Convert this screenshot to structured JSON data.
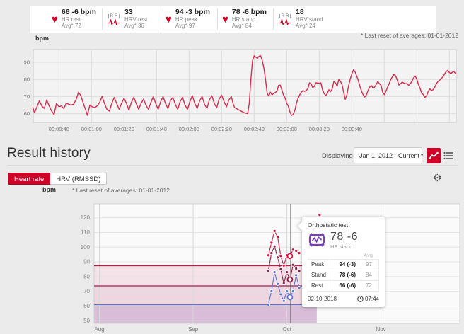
{
  "icons": {
    "heart": "♥",
    "rr_label": "R-R",
    "dropdown_arrow": "▼",
    "gear": "⚙"
  },
  "colors": {
    "brand_red": "#d10027",
    "line_red": "#dc2a4d",
    "peak": "#d6133f",
    "stand": "#8f2045",
    "rest": "#5b74cf",
    "cursor": "#3d3d3d"
  },
  "top_stats": {
    "items": [
      {
        "icon": "heart",
        "value": "66 -6 bpm",
        "label": "HR rest",
        "avg": "Avg* 72"
      },
      {
        "icon": "rr",
        "value": "33",
        "label": "HRV rest",
        "avg": "Avg* 36"
      },
      {
        "icon": "heart",
        "value": "94 -3 bpm",
        "label": "HR peak",
        "avg": "Avg* 97"
      },
      {
        "icon": "heart",
        "value": "78 -6 bpm",
        "label": "HR stand",
        "avg": "Avg* 84"
      },
      {
        "icon": "rr",
        "value": "18",
        "label": "HRV stand",
        "avg": "Avg* 24"
      }
    ],
    "reset_note": "* Last reset of averages: 01-01-2012"
  },
  "result_history": {
    "title": "Result history",
    "displaying_label": "Displaying",
    "range_value": "Jan 1, 2012 - Current",
    "tabs": [
      {
        "label": "Heart rate",
        "active": true
      },
      {
        "label": "HRV (RMSSD)",
        "active": false
      }
    ],
    "unit": "bpm",
    "reset_note": "* Last reset of averages: 01-01-2012"
  },
  "tooltip": {
    "title": "Orthostatic test",
    "value": "78 -6",
    "value_label": "HR stand",
    "avg_header": "Avg",
    "rows": [
      {
        "label": "Peak",
        "value": "94 (-3)",
        "avg": "97"
      },
      {
        "label": "Stand",
        "value": "78 (-6)",
        "avg": "84"
      },
      {
        "label": "Rest",
        "value": "66 (-6)",
        "avg": "72"
      }
    ],
    "date": "02-10-2018",
    "time": "07:44"
  },
  "chart_data": [
    {
      "type": "line",
      "title": "Orthostatic test heart rate trace",
      "ylabel": "bpm",
      "y_ticks": [
        60,
        70,
        80,
        90
      ],
      "x_tick_labels": [
        "00:00:40",
        "00:01:00",
        "00:01:20",
        "00:01:40",
        "00:02:00",
        "00:02:20",
        "00:02:40",
        "00:03:00",
        "00:03:20",
        "00:03:40"
      ],
      "x_tick_seconds": [
        40,
        60,
        80,
        100,
        120,
        140,
        160,
        180,
        200,
        220
      ],
      "grid_step_seconds": 20,
      "xlim_seconds": [
        24,
        284
      ],
      "ylim": [
        55,
        97.5
      ],
      "line_color": "#dc2a4d",
      "series": [
        {
          "name": "HR",
          "points": [
            [
              24,
              63.5
            ],
            [
              25,
              60.5
            ],
            [
              26.5,
              64
            ],
            [
              28,
              67.5
            ],
            [
              29.5,
              64.5
            ],
            [
              31,
              63
            ],
            [
              32.5,
              68
            ],
            [
              34,
              64.5
            ],
            [
              35.5,
              61.5
            ],
            [
              37,
              59.5
            ],
            [
              38.5,
              66
            ],
            [
              40,
              64
            ],
            [
              41.5,
              64.5
            ],
            [
              43,
              63
            ],
            [
              44.5,
              66
            ],
            [
              46,
              65.5
            ],
            [
              47.5,
              65
            ],
            [
              49,
              65.5
            ],
            [
              50.5,
              68
            ],
            [
              52,
              72.5
            ],
            [
              53.5,
              70.5
            ],
            [
              55,
              66
            ],
            [
              56.5,
              62
            ],
            [
              57.5,
              59
            ],
            [
              59,
              65
            ],
            [
              60.5,
              64
            ],
            [
              62,
              63.5
            ],
            [
              63.5,
              64.5
            ],
            [
              65,
              66.5
            ],
            [
              66.5,
              70
            ],
            [
              68,
              66
            ],
            [
              69.5,
              62.5
            ],
            [
              71,
              61.5
            ],
            [
              72.5,
              66
            ],
            [
              74,
              69.5
            ],
            [
              75.5,
              66
            ],
            [
              77,
              62.5
            ],
            [
              78.5,
              66
            ],
            [
              80,
              69
            ],
            [
              81.5,
              66
            ],
            [
              83,
              62
            ],
            [
              84.5,
              66.5
            ],
            [
              86,
              69.5
            ],
            [
              87.5,
              66
            ],
            [
              89,
              62.5
            ],
            [
              90.5,
              66
            ],
            [
              92,
              68.5
            ],
            [
              93.5,
              65
            ],
            [
              95,
              62.5
            ],
            [
              96.5,
              66.5
            ],
            [
              98,
              70
            ],
            [
              99.5,
              66
            ],
            [
              101,
              62.5
            ],
            [
              102.5,
              67
            ],
            [
              104,
              70
            ],
            [
              105.5,
              66
            ],
            [
              107,
              63
            ],
            [
              108.5,
              67.5
            ],
            [
              110,
              69.5
            ],
            [
              111.5,
              65.5
            ],
            [
              113,
              62.5
            ],
            [
              114.5,
              67
            ],
            [
              116,
              69.5
            ],
            [
              117.5,
              65
            ],
            [
              119,
              62.5
            ],
            [
              120.5,
              67
            ],
            [
              122,
              70.5
            ],
            [
              123.5,
              66
            ],
            [
              125,
              63
            ],
            [
              126.5,
              67.5
            ],
            [
              128,
              70
            ],
            [
              129.5,
              65.5
            ],
            [
              131,
              63
            ],
            [
              132.5,
              68
            ],
            [
              134,
              70.5
            ],
            [
              135.5,
              66
            ],
            [
              137,
              63.5
            ],
            [
              138.5,
              68.5
            ],
            [
              140,
              70.8
            ],
            [
              141.5,
              67
            ],
            [
              143,
              64
            ],
            [
              144.5,
              68
            ],
            [
              146,
              70
            ],
            [
              147,
              66
            ],
            [
              148,
              63.5
            ],
            [
              150,
              62.5
            ],
            [
              152,
              61.5
            ],
            [
              154,
              60.5
            ],
            [
              156,
              60
            ],
            [
              157,
              66
            ],
            [
              158,
              80
            ],
            [
              159,
              91
            ],
            [
              160,
              93.8
            ],
            [
              161,
              93
            ],
            [
              162,
              92.3
            ],
            [
              163,
              93.5
            ],
            [
              164,
              93.8
            ],
            [
              165,
              91
            ],
            [
              166,
              86.5
            ],
            [
              167,
              80
            ],
            [
              168,
              72
            ],
            [
              169,
              70.3
            ],
            [
              170,
              72.5
            ],
            [
              171,
              71
            ],
            [
              172,
              71.8
            ],
            [
              174,
              73
            ],
            [
              175,
              76.5
            ],
            [
              176,
              76.7
            ],
            [
              177,
              74
            ],
            [
              178,
              71
            ],
            [
              179,
              69.2
            ],
            [
              180,
              66
            ],
            [
              181,
              64.4
            ],
            [
              182,
              61
            ],
            [
              183,
              59
            ],
            [
              184,
              59.5
            ],
            [
              185,
              62
            ],
            [
              186,
              66
            ],
            [
              187,
              69
            ],
            [
              188,
              71
            ],
            [
              189,
              72.5
            ],
            [
              190,
              73.5
            ],
            [
              191,
              73
            ],
            [
              192,
              73.5
            ],
            [
              193,
              74.5
            ],
            [
              194,
              78
            ],
            [
              195,
              77.5
            ],
            [
              196,
              75.2
            ],
            [
              197,
              76
            ],
            [
              198,
              78
            ],
            [
              199,
              77.9
            ],
            [
              200,
              77.8
            ],
            [
              201,
              78
            ],
            [
              202,
              74
            ],
            [
              203,
              71.8
            ],
            [
              204,
              70.5
            ],
            [
              205,
              72
            ],
            [
              206,
              74
            ],
            [
              207,
              72.8
            ],
            [
              208,
              74.5
            ],
            [
              209,
              78.8
            ],
            [
              210,
              78
            ],
            [
              211,
              76
            ],
            [
              212,
              79.9
            ],
            [
              213,
              79
            ],
            [
              214,
              77
            ],
            [
              215,
              72.5
            ],
            [
              216,
              68.3
            ],
            [
              217,
              71
            ],
            [
              218,
              76
            ],
            [
              219,
              80
            ],
            [
              220,
              83
            ],
            [
              221,
              85.6
            ],
            [
              222,
              84.5
            ],
            [
              223,
              82
            ],
            [
              224,
              79.5
            ],
            [
              225,
              76
            ],
            [
              226,
              73.2
            ],
            [
              227,
              71
            ],
            [
              228,
              69.7
            ],
            [
              229,
              71
            ],
            [
              230,
              73.5
            ],
            [
              231,
              75.5
            ],
            [
              232,
              76.5
            ],
            [
              233,
              75
            ],
            [
              234,
              75.5
            ],
            [
              235,
              77
            ],
            [
              236,
              78.8
            ],
            [
              237,
              77.5
            ],
            [
              238,
              76.5
            ],
            [
              239,
              72.5
            ],
            [
              240,
              71.1
            ],
            [
              241,
              73
            ],
            [
              242,
              75.5
            ],
            [
              243,
              77.5
            ],
            [
              244,
              80
            ],
            [
              245,
              81.6
            ],
            [
              246,
              83
            ],
            [
              247,
              82
            ],
            [
              248,
              79.5
            ],
            [
              249,
              76.7
            ],
            [
              250,
              77.5
            ],
            [
              251,
              78.5
            ],
            [
              252,
              77.8
            ],
            [
              253,
              77.5
            ],
            [
              254,
              77.6
            ],
            [
              255,
              76.5
            ],
            [
              256,
              77.5
            ],
            [
              257,
              79
            ],
            [
              258,
              80.9
            ],
            [
              259,
              82
            ],
            [
              260,
              80
            ],
            [
              261,
              77
            ],
            [
              262,
              74.8
            ],
            [
              263,
              72
            ],
            [
              264,
              71.1
            ],
            [
              265,
              69.5
            ],
            [
              266,
              70.5
            ],
            [
              267,
              73
            ],
            [
              268,
              74.5
            ],
            [
              269,
              73.5
            ],
            [
              270,
              74
            ],
            [
              271,
              75.5
            ],
            [
              272,
              77.5
            ],
            [
              273,
              78.8
            ],
            [
              274,
              79.5
            ],
            [
              275,
              80.5
            ],
            [
              276,
              81.5
            ],
            [
              277,
              83
            ],
            [
              278,
              84.6
            ],
            [
              279,
              85.3
            ],
            [
              280,
              84
            ],
            [
              281,
              83.4
            ],
            [
              282.5,
              84.8
            ],
            [
              284,
              83.3
            ]
          ]
        }
      ]
    },
    {
      "type": "line",
      "title": "Result history - Heart rate",
      "ylabel": "bpm",
      "y_ticks": [
        50,
        60,
        70,
        80,
        90,
        100,
        110,
        120
      ],
      "ylim": [
        48.2,
        129.5
      ],
      "months": [
        {
          "label": "Aug",
          "day": -60.8
        },
        {
          "label": "Sep",
          "day": -30.4
        },
        {
          "label": "Oct",
          "day": 0
        },
        {
          "label": "Nov",
          "day": 30.5
        }
      ],
      "days": [
        -6,
        -5,
        -4,
        -3,
        -2,
        -1,
        0,
        1,
        2,
        3,
        4
      ],
      "series": [
        {
          "name": "HR peak",
          "color": "#d6133f",
          "values": [
            94.5,
            103,
            111,
            107,
            94,
            87.5,
            94.5,
            94,
            98.3,
            97.5,
            96
          ]
        },
        {
          "name": "HR stand",
          "color": "#8f2045",
          "values": [
            84,
            96,
            100.5,
            93,
            85,
            75.5,
            83,
            78,
            88,
            85.5,
            84
          ]
        },
        {
          "name": "HR rest",
          "color": "#5b74cf",
          "values": [
            61,
            70,
            83,
            75,
            68,
            63.5,
            70,
            66,
            70,
            81,
            72.5
          ]
        }
      ],
      "selected_index": 7,
      "selected_date": "02-10-2018",
      "cursor_day": 1.25,
      "outlier": {
        "series": "HR peak",
        "day": 10.6,
        "value": 122
      },
      "reference_lines": [
        {
          "value": 87.4,
          "color": "#d6133f"
        },
        {
          "value": 73.7,
          "color": "#a81e55"
        },
        {
          "value": 61,
          "color": "#5b74cf"
        }
      ],
      "bands": [
        {
          "from": 87.4,
          "to": 73.7,
          "color": "#f5e1e8"
        },
        {
          "from": 73.7,
          "to": 61,
          "color": "#eed6e1"
        },
        {
          "from": 61,
          "to": 48.2,
          "color": "#d9bdd8"
        }
      ],
      "shade_end_day": 9.7,
      "legend_position": "none",
      "grid": true
    }
  ]
}
